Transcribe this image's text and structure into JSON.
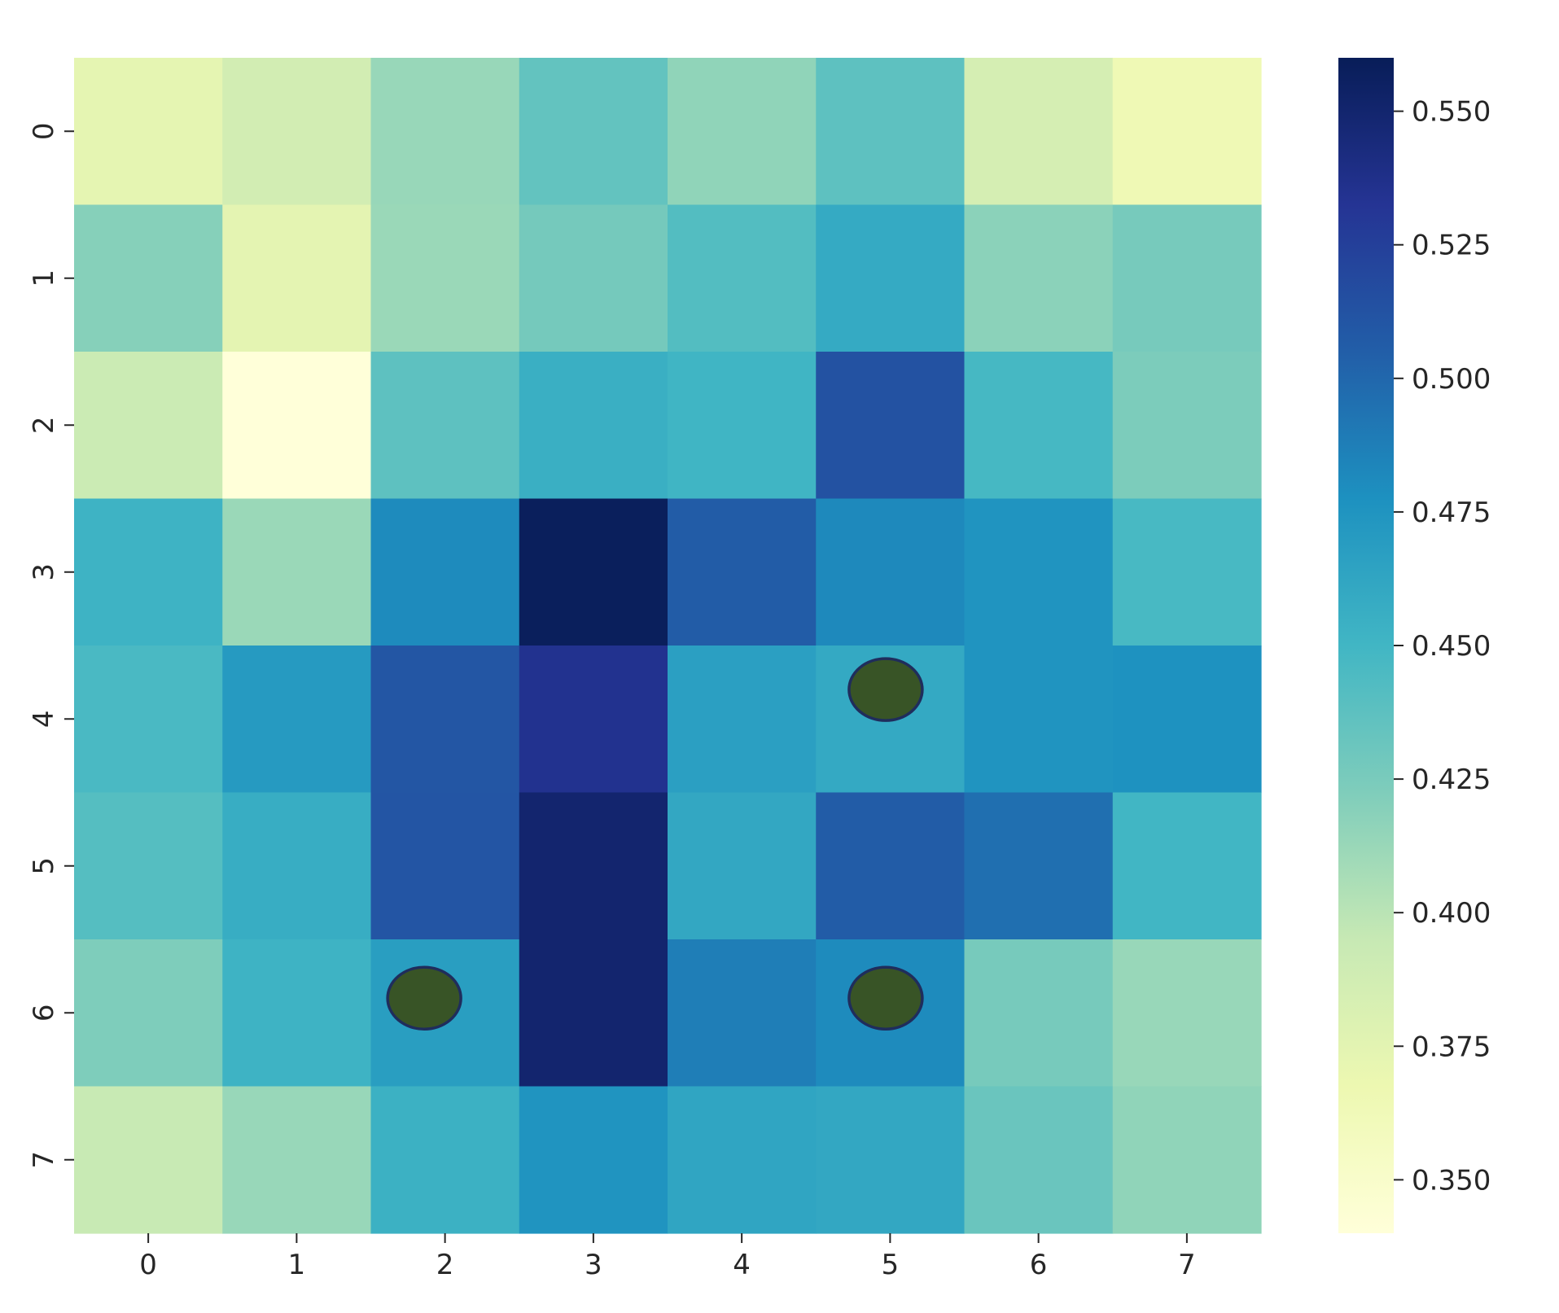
{
  "chart_data": {
    "type": "heatmap",
    "title": "",
    "xlabel": "",
    "ylabel": "",
    "x_labels": [
      "0",
      "1",
      "2",
      "3",
      "4",
      "5",
      "6",
      "7"
    ],
    "y_labels": [
      "0",
      "1",
      "2",
      "3",
      "4",
      "5",
      "6",
      "7"
    ],
    "values": [
      [
        0.373,
        0.387,
        0.413,
        0.435,
        0.416,
        0.437,
        0.385,
        0.365
      ],
      [
        0.42,
        0.374,
        0.412,
        0.427,
        0.442,
        0.459,
        0.418,
        0.426
      ],
      [
        0.392,
        0.34,
        0.437,
        0.455,
        0.451,
        0.513,
        0.448,
        0.424
      ],
      [
        0.452,
        0.412,
        0.481,
        0.558,
        0.506,
        0.482,
        0.475,
        0.447
      ],
      [
        0.446,
        0.471,
        0.51,
        0.535,
        0.467,
        0.46,
        0.475,
        0.477
      ],
      [
        0.441,
        0.457,
        0.511,
        0.55,
        0.461,
        0.506,
        0.496,
        0.45
      ],
      [
        0.423,
        0.452,
        0.468,
        0.55,
        0.488,
        0.481,
        0.426,
        0.413
      ],
      [
        0.394,
        0.413,
        0.454,
        0.475,
        0.463,
        0.461,
        0.432,
        0.416
      ]
    ],
    "colormap": "YlGnBu",
    "vmin": 0.34,
    "vmax": 0.56,
    "colorbar_ticks": [
      "0.550",
      "0.525",
      "0.500",
      "0.475",
      "0.450",
      "0.425",
      "0.400",
      "0.375",
      "0.350"
    ],
    "markers": [
      {
        "row": 3.8,
        "col": 4.97
      },
      {
        "row": 5.9,
        "col": 1.86
      },
      {
        "row": 5.9,
        "col": 4.97
      }
    ],
    "marker_color": "#385426",
    "marker_edge_color": "#1f2d5c",
    "grid": false,
    "legend": "colorbar-right"
  }
}
